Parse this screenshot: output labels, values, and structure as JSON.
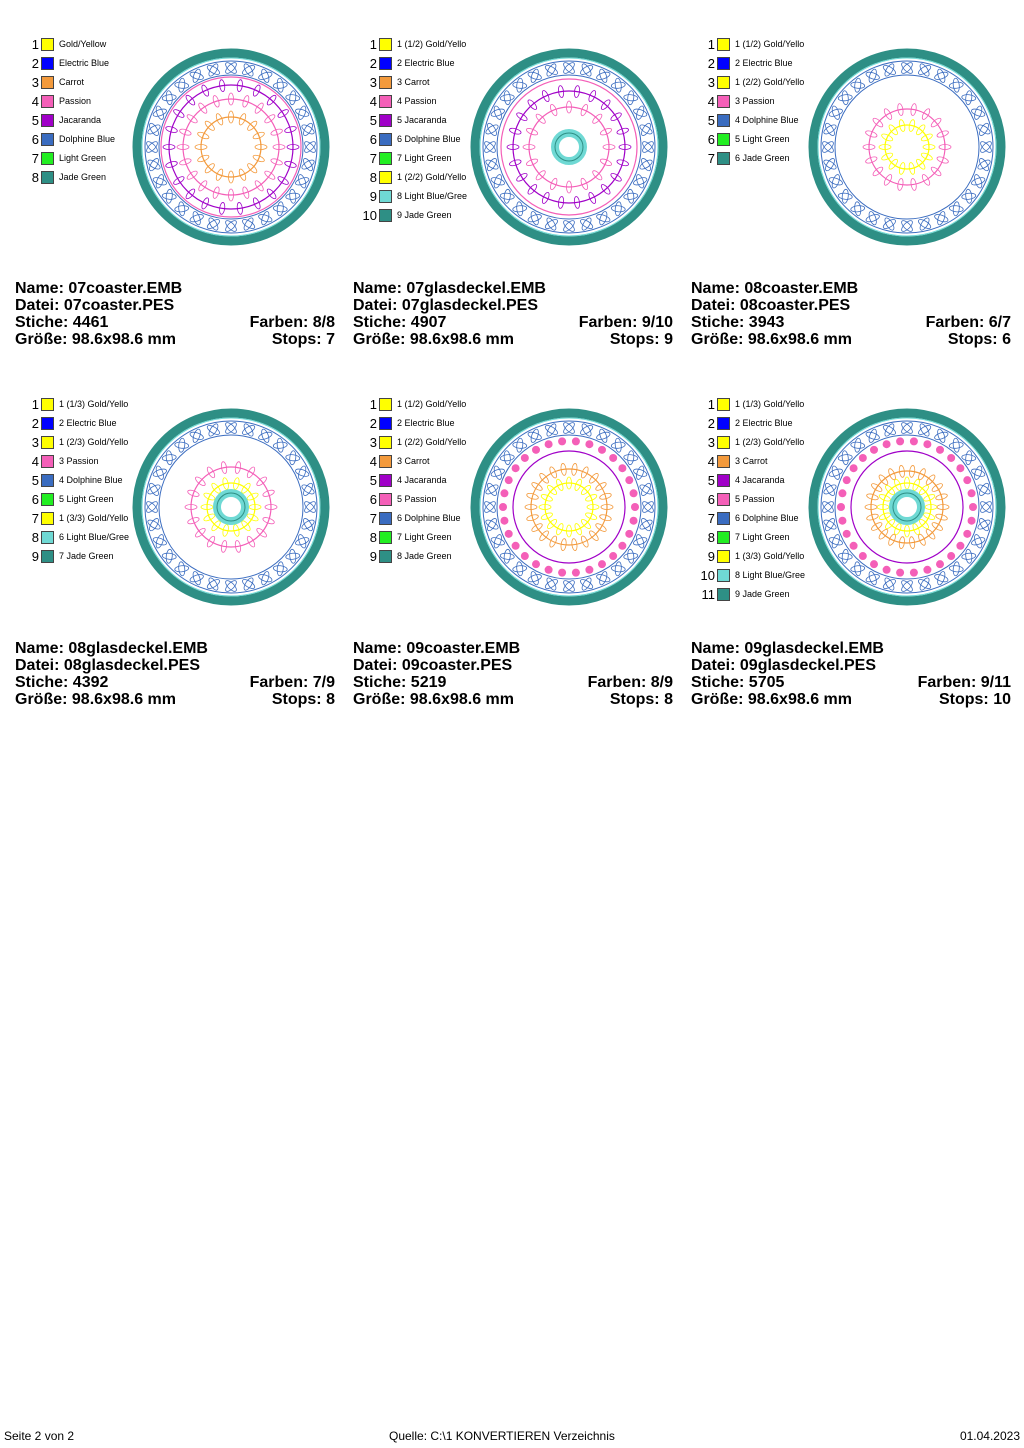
{
  "labels": {
    "name": "Name:",
    "datei": "Datei:",
    "stiche": "Stiche:",
    "farben": "Farben:",
    "groesse": "Größe:",
    "stops": "Stops:"
  },
  "colors": {
    "Gold/Yellow": "#ffff00",
    "Electric Blue": "#0000ff",
    "Carrot": "#f39a3c",
    "Passion": "#f45fb8",
    "Jacaranda": "#a000c8",
    "Dolphine Blue": "#3a6cc0",
    "Light Green": "#22ee22",
    "Light Blue/Green": "#6fd9d4",
    "Jade Green": "#2e8f85"
  },
  "designs": [
    {
      "name": "07coaster.EMB",
      "datei": "07coaster.PES",
      "stiche": "4461",
      "farben": "8/8",
      "groesse": "98.6x98.6 mm",
      "stops": "7",
      "legend": [
        {
          "num": "1",
          "label": "Gold/Yellow",
          "color": "Gold/Yellow"
        },
        {
          "num": "2",
          "label": "Electric Blue",
          "color": "Electric Blue"
        },
        {
          "num": "3",
          "label": "Carrot",
          "color": "Carrot"
        },
        {
          "num": "4",
          "label": "Passion",
          "color": "Passion"
        },
        {
          "num": "5",
          "label": "Jacaranda",
          "color": "Jacaranda"
        },
        {
          "num": "6",
          "label": "Dolphine Blue",
          "color": "Dolphine Blue"
        },
        {
          "num": "7",
          "label": "Light Green",
          "color": "Light Green"
        },
        {
          "num": "8",
          "label": "Jade Green",
          "color": "Jade Green"
        }
      ]
    },
    {
      "name": "07glasdeckel.EMB",
      "datei": "07glasdeckel.PES",
      "stiche": "4907",
      "farben": "9/10",
      "groesse": "98.6x98.6 mm",
      "stops": "9",
      "legend": [
        {
          "num": "1",
          "label": "1 (1/2) Gold/Yello",
          "color": "Gold/Yellow"
        },
        {
          "num": "2",
          "label": "2 Electric Blue",
          "color": "Electric Blue"
        },
        {
          "num": "3",
          "label": "3 Carrot",
          "color": "Carrot"
        },
        {
          "num": "4",
          "label": "4 Passion",
          "color": "Passion"
        },
        {
          "num": "5",
          "label": "5 Jacaranda",
          "color": "Jacaranda"
        },
        {
          "num": "6",
          "label": "6 Dolphine Blue",
          "color": "Dolphine Blue"
        },
        {
          "num": "7",
          "label": "7 Light Green",
          "color": "Light Green"
        },
        {
          "num": "8",
          "label": "1 (2/2) Gold/Yello",
          "color": "Gold/Yellow"
        },
        {
          "num": "9",
          "label": "8 Light Blue/Gree",
          "color": "Light Blue/Green"
        },
        {
          "num": "10",
          "label": "9 Jade Green",
          "color": "Jade Green"
        }
      ]
    },
    {
      "name": "08coaster.EMB",
      "datei": "08coaster.PES",
      "stiche": "3943",
      "farben": "6/7",
      "groesse": "98.6x98.6 mm",
      "stops": "6",
      "legend": [
        {
          "num": "1",
          "label": "1 (1/2) Gold/Yello",
          "color": "Gold/Yellow"
        },
        {
          "num": "2",
          "label": "2 Electric Blue",
          "color": "Electric Blue"
        },
        {
          "num": "3",
          "label": "1 (2/2) Gold/Yello",
          "color": "Gold/Yellow"
        },
        {
          "num": "4",
          "label": "3 Passion",
          "color": "Passion"
        },
        {
          "num": "5",
          "label": "4 Dolphine Blue",
          "color": "Dolphine Blue"
        },
        {
          "num": "6",
          "label": "5 Light Green",
          "color": "Light Green"
        },
        {
          "num": "7",
          "label": "6 Jade Green",
          "color": "Jade Green"
        }
      ]
    },
    {
      "name": "08glasdeckel.EMB",
      "datei": "08glasdeckel.PES",
      "stiche": "4392",
      "farben": "7/9",
      "groesse": "98.6x98.6 mm",
      "stops": "8",
      "legend": [
        {
          "num": "1",
          "label": "1 (1/3) Gold/Yello",
          "color": "Gold/Yellow"
        },
        {
          "num": "2",
          "label": "2 Electric Blue",
          "color": "Electric Blue"
        },
        {
          "num": "3",
          "label": "1 (2/3) Gold/Yello",
          "color": "Gold/Yellow"
        },
        {
          "num": "4",
          "label": "3 Passion",
          "color": "Passion"
        },
        {
          "num": "5",
          "label": "4 Dolphine Blue",
          "color": "Dolphine Blue"
        },
        {
          "num": "6",
          "label": "5 Light Green",
          "color": "Light Green"
        },
        {
          "num": "7",
          "label": "1 (3/3) Gold/Yello",
          "color": "Gold/Yellow"
        },
        {
          "num": "8",
          "label": "6 Light Blue/Gree",
          "color": "Light Blue/Green"
        },
        {
          "num": "9",
          "label": "7 Jade Green",
          "color": "Jade Green"
        }
      ]
    },
    {
      "name": "09coaster.EMB",
      "datei": "09coaster.PES",
      "stiche": "5219",
      "farben": "8/9",
      "groesse": "98.6x98.6 mm",
      "stops": "8",
      "legend": [
        {
          "num": "1",
          "label": "1 (1/2) Gold/Yello",
          "color": "Gold/Yellow"
        },
        {
          "num": "2",
          "label": "2 Electric Blue",
          "color": "Electric Blue"
        },
        {
          "num": "3",
          "label": "1 (2/2) Gold/Yello",
          "color": "Gold/Yellow"
        },
        {
          "num": "4",
          "label": "3 Carrot",
          "color": "Carrot"
        },
        {
          "num": "5",
          "label": "4 Jacaranda",
          "color": "Jacaranda"
        },
        {
          "num": "6",
          "label": "5 Passion",
          "color": "Passion"
        },
        {
          "num": "7",
          "label": "6 Dolphine Blue",
          "color": "Dolphine Blue"
        },
        {
          "num": "8",
          "label": "7 Light Green",
          "color": "Light Green"
        },
        {
          "num": "9",
          "label": "8 Jade Green",
          "color": "Jade Green"
        }
      ]
    },
    {
      "name": "09glasdeckel.EMB",
      "datei": "09glasdeckel.PES",
      "stiche": "5705",
      "farben": "9/11",
      "groesse": "98.6x98.6 mm",
      "stops": "10",
      "legend": [
        {
          "num": "1",
          "label": "1 (1/3) Gold/Yello",
          "color": "Gold/Yellow"
        },
        {
          "num": "2",
          "label": "2 Electric Blue",
          "color": "Electric Blue"
        },
        {
          "num": "3",
          "label": "1 (2/3) Gold/Yello",
          "color": "Gold/Yellow"
        },
        {
          "num": "4",
          "label": "3 Carrot",
          "color": "Carrot"
        },
        {
          "num": "5",
          "label": "4 Jacaranda",
          "color": "Jacaranda"
        },
        {
          "num": "6",
          "label": "5 Passion",
          "color": "Passion"
        },
        {
          "num": "7",
          "label": "6 Dolphine Blue",
          "color": "Dolphine Blue"
        },
        {
          "num": "8",
          "label": "7 Light Green",
          "color": "Light Green"
        },
        {
          "num": "9",
          "label": "1 (3/3) Gold/Yello",
          "color": "Gold/Yellow"
        },
        {
          "num": "10",
          "label": "8 Light Blue/Gree",
          "color": "Light Blue/Green"
        },
        {
          "num": "11",
          "label": "9 Jade Green",
          "color": "Jade Green"
        }
      ]
    }
  ],
  "footer": {
    "page": "Seite 2 von 2",
    "source": "Quelle: C:\\1 KONVERTIEREN Verzeichnis",
    "date": "01.04.2023"
  }
}
